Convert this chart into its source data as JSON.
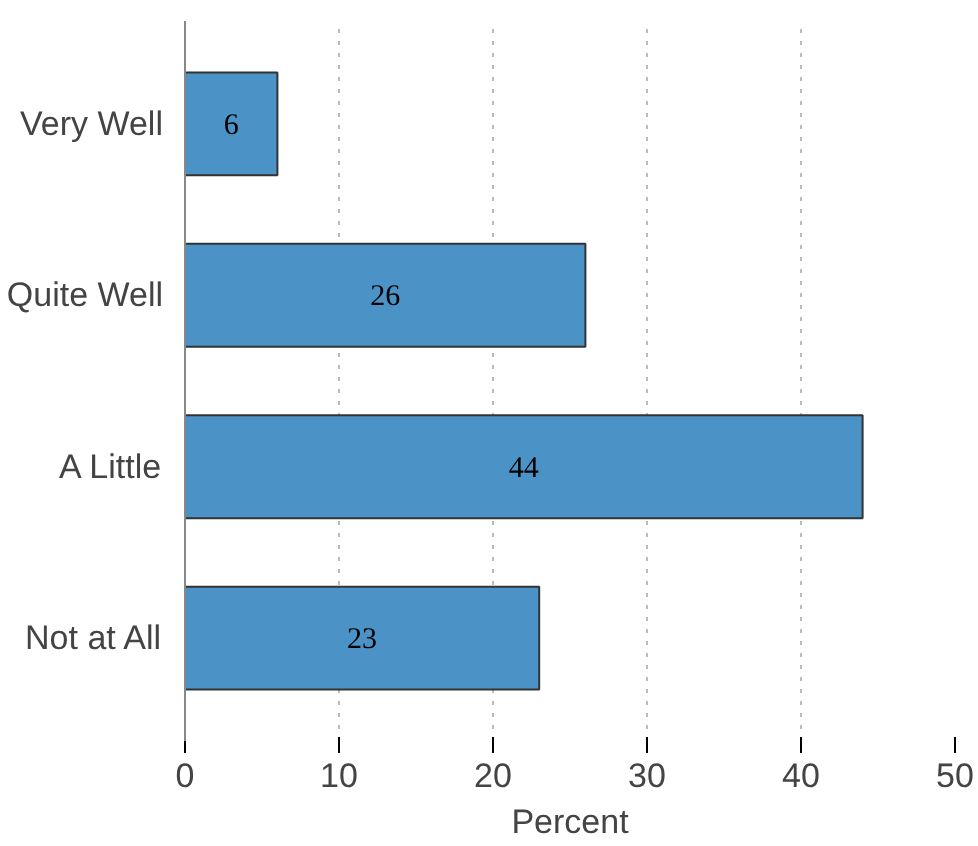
{
  "chart_data": {
    "type": "bar",
    "orientation": "horizontal",
    "categories": [
      "Very Well",
      "Quite Well",
      "A Little",
      "Not at All"
    ],
    "values": [
      6,
      26,
      44,
      23
    ],
    "color": "#4b92c6",
    "data_labels": true,
    "xlabel": "Percent",
    "xlim": [
      0,
      50
    ],
    "xticks": [
      0,
      10,
      20,
      30,
      40,
      50
    ],
    "grid": "x"
  }
}
